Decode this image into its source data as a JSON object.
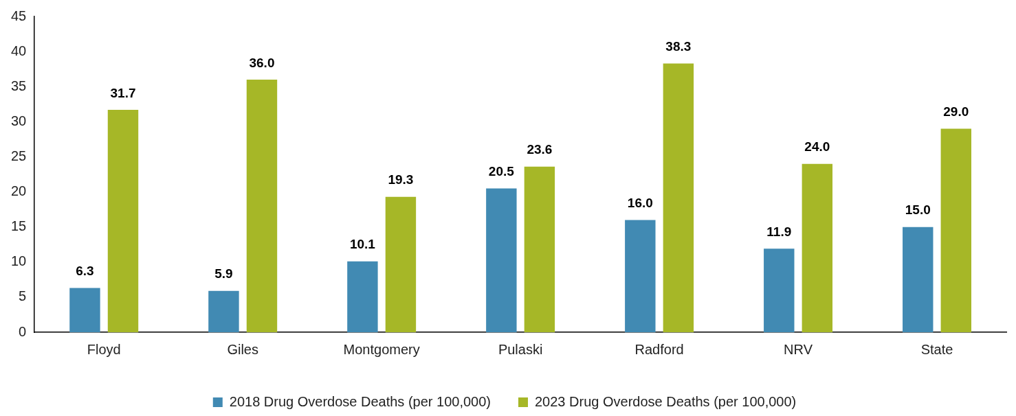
{
  "chart_data": {
    "type": "bar",
    "categories": [
      "Floyd",
      "Giles",
      "Montgomery",
      "Pulaski",
      "Radford",
      "NRV",
      "State"
    ],
    "series": [
      {
        "name": "2018 Drug Overdose Deaths (per 100,000)",
        "color": "#418ab3",
        "values": [
          6.3,
          5.9,
          10.1,
          20.5,
          16.0,
          11.9,
          15.0
        ],
        "value_labels": [
          "6.3",
          "5.9",
          "10.1",
          "20.5",
          "16.0",
          "11.9",
          "15.0"
        ]
      },
      {
        "name": "2023 Drug Overdose Deaths (per 100,000)",
        "color": "#a6b727",
        "values": [
          31.7,
          36.0,
          19.3,
          23.6,
          38.3,
          24.0,
          29.0
        ],
        "value_labels": [
          "31.7",
          "36.0",
          "19.3",
          "23.6",
          "38.3",
          "24.0",
          "29.0"
        ]
      }
    ],
    "ylim": [
      0,
      45
    ],
    "yticks": [
      0,
      5,
      10,
      15,
      20,
      25,
      30,
      35,
      40,
      45
    ],
    "grid": false,
    "legend": "bottom"
  }
}
